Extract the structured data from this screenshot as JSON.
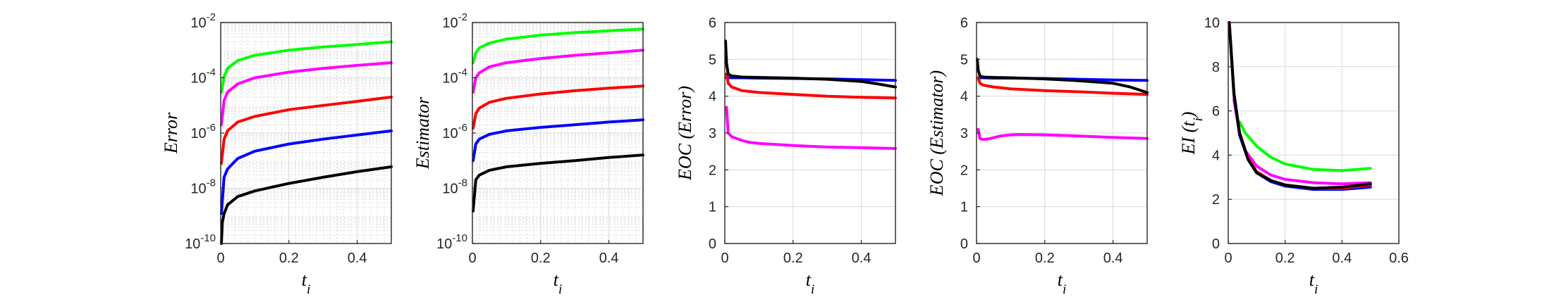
{
  "colors": {
    "green": "#00ff00",
    "magenta": "#ff00ff",
    "red": "#ff0000",
    "blue": "#0000ff",
    "black": "#000000"
  },
  "chart_data": [
    {
      "type": "line",
      "ylabel": "Error",
      "xlabel": "t_i",
      "yscale": "log",
      "ylim": [
        1e-10,
        0.01
      ],
      "xlim": [
        0,
        0.5
      ],
      "xticks": [
        "0",
        "0.2",
        "0.4"
      ],
      "yticks": [
        {
          "base": "10",
          "exp": "-2",
          "value": 0.01
        },
        {
          "base": "10",
          "exp": "-4",
          "value": 0.0001
        },
        {
          "base": "10",
          "exp": "-6",
          "value": 1e-06
        },
        {
          "base": "10",
          "exp": "-8",
          "value": 1e-08
        },
        {
          "base": "10",
          "exp": "-10",
          "value": 1e-10
        }
      ],
      "grid": "major+minor",
      "series": [
        {
          "color": "green",
          "x": [
            0.002,
            0.01,
            0.02,
            0.05,
            0.1,
            0.2,
            0.3,
            0.4,
            0.5
          ],
          "y": [
            3e-05,
            0.00011,
            0.00022,
            0.00042,
            0.00065,
            0.001,
            0.0013,
            0.0016,
            0.002
          ]
        },
        {
          "color": "magenta",
          "x": [
            0.002,
            0.01,
            0.02,
            0.05,
            0.1,
            0.2,
            0.3,
            0.4,
            0.5
          ],
          "y": [
            2e-06,
            1.5e-05,
            3e-05,
            6e-05,
            0.0001,
            0.00016,
            0.00022,
            0.00028,
            0.00035
          ]
        },
        {
          "color": "red",
          "x": [
            0.002,
            0.01,
            0.02,
            0.05,
            0.1,
            0.2,
            0.3,
            0.4,
            0.5
          ],
          "y": [
            8e-08,
            6e-07,
            1.2e-06,
            2.5e-06,
            4e-06,
            7e-06,
            1e-05,
            1.4e-05,
            2e-05
          ]
        },
        {
          "color": "blue",
          "x": [
            0.002,
            0.01,
            0.02,
            0.05,
            0.1,
            0.2,
            0.3,
            0.4,
            0.5
          ],
          "y": [
            1.2e-09,
            2.5e-08,
            5e-08,
            1.2e-07,
            2.2e-07,
            4e-07,
            6e-07,
            8.5e-07,
            1.2e-06
          ]
        },
        {
          "color": "black",
          "x": [
            0.002,
            0.005,
            0.01,
            0.02,
            0.05,
            0.1,
            0.2,
            0.3,
            0.4,
            0.5
          ],
          "y": [
            1e-10,
            6e-10,
            1.2e-09,
            2.5e-09,
            5e-09,
            8e-09,
            1.5e-08,
            2.5e-08,
            4e-08,
            6e-08
          ]
        }
      ]
    },
    {
      "type": "line",
      "ylabel": "Estimator",
      "xlabel": "t_i",
      "yscale": "log",
      "ylim": [
        1e-10,
        0.01
      ],
      "xlim": [
        0,
        0.5
      ],
      "xticks": [
        "0",
        "0.2",
        "0.4"
      ],
      "yticks": [
        {
          "base": "10",
          "exp": "-2",
          "value": 0.01
        },
        {
          "base": "10",
          "exp": "-4",
          "value": 0.0001
        },
        {
          "base": "10",
          "exp": "-6",
          "value": 1e-06
        },
        {
          "base": "10",
          "exp": "-8",
          "value": 1e-08
        },
        {
          "base": "10",
          "exp": "-10",
          "value": 1e-10
        }
      ],
      "grid": "major+minor",
      "series": [
        {
          "color": "green",
          "x": [
            0.002,
            0.01,
            0.02,
            0.05,
            0.1,
            0.2,
            0.3,
            0.4,
            0.5
          ],
          "y": [
            0.00035,
            0.0008,
            0.0012,
            0.0018,
            0.0025,
            0.0035,
            0.0043,
            0.005,
            0.0058
          ]
        },
        {
          "color": "magenta",
          "x": [
            0.002,
            0.01,
            0.02,
            0.05,
            0.1,
            0.2,
            0.3,
            0.4,
            0.5
          ],
          "y": [
            3e-05,
            0.0001,
            0.00015,
            0.00025,
            0.00035,
            0.0005,
            0.00065,
            0.0008,
            0.001
          ]
        },
        {
          "color": "red",
          "x": [
            0.002,
            0.01,
            0.02,
            0.05,
            0.1,
            0.2,
            0.3,
            0.4,
            0.5
          ],
          "y": [
            1.5e-06,
            5e-06,
            8e-06,
            1.3e-05,
            1.8e-05,
            2.6e-05,
            3.4e-05,
            4.2e-05,
            5e-05
          ]
        },
        {
          "color": "blue",
          "x": [
            0.002,
            0.01,
            0.02,
            0.05,
            0.1,
            0.2,
            0.3,
            0.4,
            0.5
          ],
          "y": [
            1e-07,
            4e-07,
            6e-07,
            9e-07,
            1.2e-06,
            1.6e-06,
            2e-06,
            2.5e-06,
            3e-06
          ]
        },
        {
          "color": "black",
          "x": [
            0.002,
            0.01,
            0.02,
            0.05,
            0.1,
            0.2,
            0.3,
            0.4,
            0.5
          ],
          "y": [
            1.5e-09,
            2e-08,
            3e-08,
            4.5e-08,
            6e-08,
            8e-08,
            1e-07,
            1.3e-07,
            1.6e-07
          ]
        }
      ]
    },
    {
      "type": "line",
      "ylabel": "EOC (Error)",
      "xlabel": "t_i",
      "yscale": "linear",
      "ylim": [
        0,
        6
      ],
      "xlim": [
        0,
        0.5
      ],
      "xticks": [
        "0",
        "0.2",
        "0.4"
      ],
      "yticks": [
        "0",
        "1",
        "2",
        "3",
        "4",
        "5",
        "6"
      ],
      "grid": "major",
      "series": [
        {
          "color": "blue",
          "x": [
            0.005,
            0.01,
            0.02,
            0.05,
            0.1,
            0.2,
            0.3,
            0.4,
            0.5
          ],
          "y": [
            4.5,
            4.5,
            4.5,
            4.5,
            4.49,
            4.48,
            4.47,
            4.45,
            4.43
          ]
        },
        {
          "color": "red",
          "x": [
            0.005,
            0.01,
            0.02,
            0.05,
            0.1,
            0.2,
            0.3,
            0.4,
            0.5
          ],
          "y": [
            4.6,
            4.35,
            4.25,
            4.15,
            4.1,
            4.05,
            4.0,
            3.97,
            3.95
          ]
        },
        {
          "color": "magenta",
          "x": [
            0.005,
            0.01,
            0.02,
            0.05,
            0.07,
            0.1,
            0.2,
            0.3,
            0.4,
            0.5
          ],
          "y": [
            3.7,
            3.0,
            2.9,
            2.8,
            2.75,
            2.72,
            2.66,
            2.62,
            2.6,
            2.58
          ]
        },
        {
          "color": "black",
          "x": [
            0.002,
            0.005,
            0.01,
            0.02,
            0.05,
            0.1,
            0.2,
            0.3,
            0.4,
            0.45,
            0.5
          ],
          "y": [
            5.5,
            4.9,
            4.6,
            4.55,
            4.52,
            4.51,
            4.49,
            4.46,
            4.4,
            4.33,
            4.25
          ]
        }
      ]
    },
    {
      "type": "line",
      "ylabel": "EOC (Estimator)",
      "xlabel": "t_i",
      "yscale": "linear",
      "ylim": [
        0,
        6
      ],
      "xlim": [
        0,
        0.5
      ],
      "xticks": [
        "0",
        "0.2",
        "0.4"
      ],
      "yticks": [
        "0",
        "1",
        "2",
        "3",
        "4",
        "5",
        "6"
      ],
      "grid": "major",
      "series": [
        {
          "color": "blue",
          "x": [
            0.005,
            0.01,
            0.02,
            0.05,
            0.1,
            0.2,
            0.3,
            0.4,
            0.5
          ],
          "y": [
            4.5,
            4.5,
            4.5,
            4.49,
            4.49,
            4.48,
            4.46,
            4.44,
            4.43
          ]
        },
        {
          "color": "red",
          "x": [
            0.005,
            0.01,
            0.02,
            0.05,
            0.1,
            0.2,
            0.3,
            0.4,
            0.5
          ],
          "y": [
            4.5,
            4.35,
            4.3,
            4.25,
            4.2,
            4.15,
            4.12,
            4.08,
            4.05
          ]
        },
        {
          "color": "magenta",
          "x": [
            0.005,
            0.01,
            0.02,
            0.04,
            0.07,
            0.1,
            0.13,
            0.2,
            0.3,
            0.4,
            0.5
          ],
          "y": [
            3.1,
            2.85,
            2.82,
            2.85,
            2.92,
            2.95,
            2.96,
            2.95,
            2.92,
            2.88,
            2.85
          ]
        },
        {
          "color": "black",
          "x": [
            0.002,
            0.005,
            0.01,
            0.02,
            0.05,
            0.1,
            0.2,
            0.3,
            0.4,
            0.45,
            0.5
          ],
          "y": [
            5.0,
            4.7,
            4.55,
            4.52,
            4.51,
            4.5,
            4.47,
            4.42,
            4.35,
            4.25,
            4.1
          ]
        }
      ]
    },
    {
      "type": "line",
      "ylabel": "EI (t_i)",
      "xlabel": "t_i",
      "yscale": "linear",
      "ylim": [
        0,
        10
      ],
      "xlim": [
        0,
        0.6
      ],
      "xticks": [
        "0",
        "0.2",
        "0.4",
        "0.6"
      ],
      "yticks": [
        "0",
        "2",
        "4",
        "6",
        "8",
        "10"
      ],
      "grid": "major",
      "series": [
        {
          "color": "green",
          "x": [
            0.04,
            0.06,
            0.1,
            0.15,
            0.2,
            0.3,
            0.4,
            0.5
          ],
          "y": [
            5.5,
            5.0,
            4.4,
            3.9,
            3.6,
            3.35,
            3.3,
            3.4
          ]
        },
        {
          "color": "magenta",
          "x": [
            0.02,
            0.04,
            0.06,
            0.1,
            0.15,
            0.2,
            0.3,
            0.4,
            0.5
          ],
          "y": [
            6.5,
            5.0,
            4.2,
            3.5,
            3.1,
            2.9,
            2.75,
            2.7,
            2.75
          ]
        },
        {
          "color": "blue",
          "x": [
            0.004,
            0.01,
            0.02,
            0.04,
            0.07,
            0.1,
            0.15,
            0.2,
            0.3,
            0.4,
            0.5
          ],
          "y": [
            10,
            8.7,
            6.7,
            4.9,
            3.8,
            3.2,
            2.8,
            2.6,
            2.45,
            2.45,
            2.55
          ]
        },
        {
          "color": "red",
          "x": [
            0.004,
            0.01,
            0.02,
            0.04,
            0.07,
            0.1,
            0.15,
            0.2,
            0.3,
            0.4,
            0.5
          ],
          "y": [
            10,
            8.8,
            6.8,
            5.0,
            3.85,
            3.25,
            2.85,
            2.65,
            2.5,
            2.5,
            2.65
          ]
        },
        {
          "color": "black",
          "x": [
            0.003,
            0.01,
            0.02,
            0.04,
            0.07,
            0.1,
            0.15,
            0.2,
            0.3,
            0.4,
            0.5
          ],
          "y": [
            10,
            8.8,
            6.8,
            5.0,
            3.8,
            3.2,
            2.85,
            2.65,
            2.5,
            2.55,
            2.7
          ]
        }
      ]
    }
  ]
}
